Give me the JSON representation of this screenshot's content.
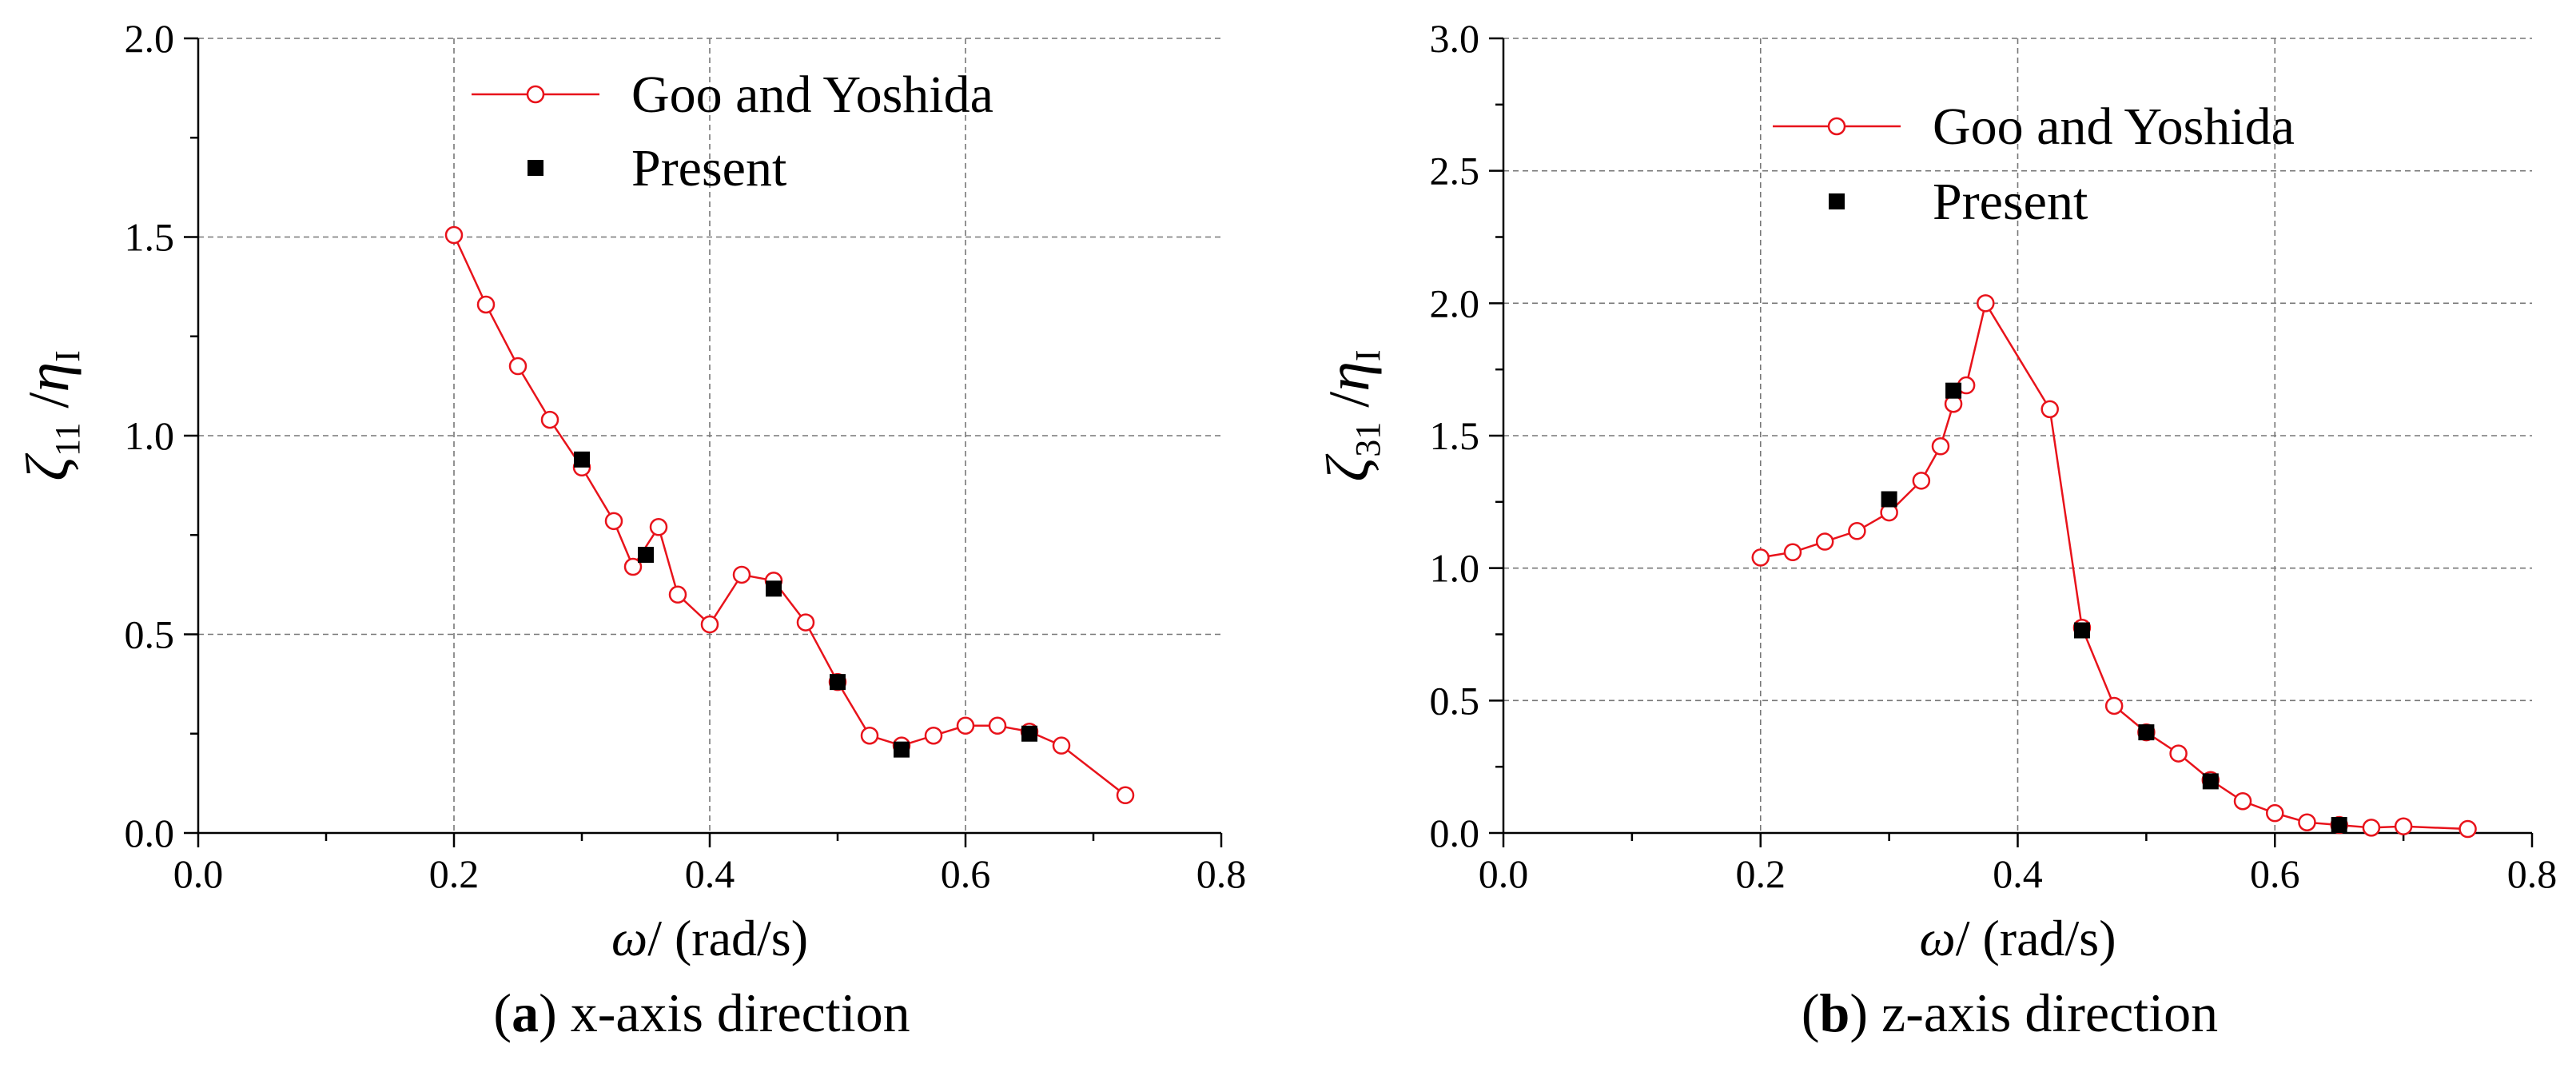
{
  "chart_data": [
    {
      "type": "scatter",
      "panel_label": "a",
      "caption": "x-axis direction",
      "xlabel": "(rad/s)",
      "xlabel_symbol": "ω",
      "ylabel_symbol_num": "ζ",
      "ylabel_sub_num": "11",
      "ylabel_symbol_den": "η",
      "ylabel_sub_den": "I",
      "xlim": [
        0.0,
        0.8
      ],
      "ylim": [
        0.0,
        2.0
      ],
      "x_ticks": [
        "0.0",
        "0.2",
        "0.4",
        "0.6",
        "0.8"
      ],
      "y_ticks": [
        "0.0",
        "0.5",
        "1.0",
        "1.5",
        "2.0"
      ],
      "legend_position": "top-center",
      "series": [
        {
          "name": "Goo and Yoshida",
          "style": "line-circle",
          "color": "#e8131b",
          "x": [
            0.2,
            0.225,
            0.25,
            0.275,
            0.3,
            0.325,
            0.34,
            0.36,
            0.375,
            0.4,
            0.425,
            0.45,
            0.475,
            0.5,
            0.525,
            0.55,
            0.575,
            0.6,
            0.625,
            0.65,
            0.675,
            0.725
          ],
          "y": [
            1.505,
            1.33,
            1.175,
            1.04,
            0.92,
            0.785,
            0.67,
            0.77,
            0.6,
            0.525,
            0.65,
            0.635,
            0.53,
            0.38,
            0.245,
            0.22,
            0.245,
            0.27,
            0.27,
            0.255,
            0.22,
            0.095
          ]
        },
        {
          "name": "Present",
          "style": "square",
          "color": "#000000",
          "x": [
            0.3,
            0.35,
            0.45,
            0.5,
            0.55,
            0.65
          ],
          "y": [
            0.94,
            0.7,
            0.615,
            0.38,
            0.21,
            0.25
          ]
        }
      ]
    },
    {
      "type": "scatter",
      "panel_label": "b",
      "caption": "z-axis direction",
      "xlabel": "(rad/s)",
      "xlabel_symbol": "ω",
      "ylabel_symbol_num": "ζ",
      "ylabel_sub_num": "31",
      "ylabel_symbol_den": "η",
      "ylabel_sub_den": "I",
      "xlim": [
        0.0,
        0.8
      ],
      "ylim": [
        0.0,
        3.0
      ],
      "x_ticks": [
        "0.0",
        "0.2",
        "0.4",
        "0.6",
        "0.8"
      ],
      "y_ticks": [
        "0.0",
        "0.5",
        "1.0",
        "1.5",
        "2.0",
        "2.5",
        "3.0"
      ],
      "legend_position": "top-right",
      "series": [
        {
          "name": "Goo and Yoshida",
          "style": "line-circle",
          "color": "#e8131b",
          "x": [
            0.2,
            0.225,
            0.25,
            0.275,
            0.3,
            0.325,
            0.34,
            0.35,
            0.36,
            0.375,
            0.425,
            0.45,
            0.475,
            0.5,
            0.525,
            0.55,
            0.575,
            0.6,
            0.625,
            0.65,
            0.675,
            0.7,
            0.75
          ],
          "y": [
            1.04,
            1.06,
            1.1,
            1.14,
            1.21,
            1.33,
            1.46,
            1.62,
            1.69,
            2.0,
            1.6,
            0.775,
            0.48,
            0.38,
            0.3,
            0.2,
            0.12,
            0.075,
            0.04,
            0.03,
            0.02,
            0.025,
            0.015
          ]
        },
        {
          "name": "Present",
          "style": "square",
          "color": "#000000",
          "x": [
            0.3,
            0.35,
            0.45,
            0.5,
            0.55,
            0.65
          ],
          "y": [
            1.26,
            1.67,
            0.765,
            0.38,
            0.195,
            0.03
          ]
        }
      ]
    }
  ]
}
